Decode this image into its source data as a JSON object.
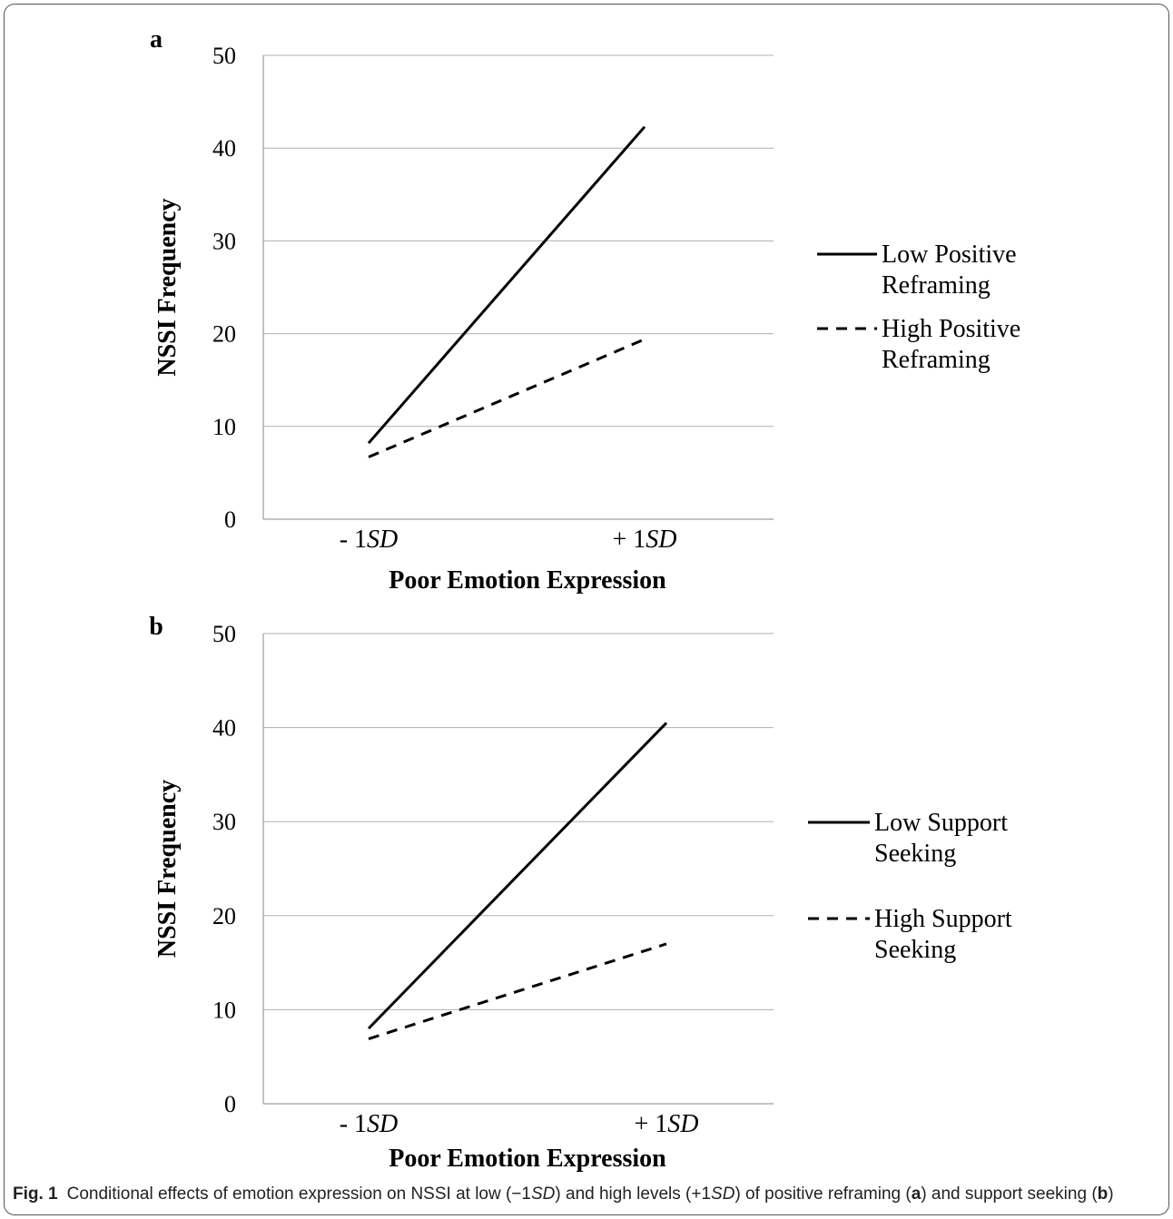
{
  "caption": {
    "label": "Fig. 1",
    "parts": [
      {
        "t": "Conditional effects of emotion expression on NSSI at low (−1",
        "s": ""
      },
      {
        "t": "SD",
        "s": "i"
      },
      {
        "t": ") and high levels (+1",
        "s": ""
      },
      {
        "t": "SD",
        "s": "i"
      },
      {
        "t": ") of positive reframing (",
        "s": ""
      },
      {
        "t": "a",
        "s": "b"
      },
      {
        "t": ") and support seeking (",
        "s": ""
      },
      {
        "t": "b",
        "s": "b"
      },
      {
        "t": ")",
        "s": ""
      }
    ]
  },
  "chart_data": [
    {
      "panel_label": "a",
      "type": "line",
      "ylabel": "NSSI Frequency",
      "xlabel": "Poor Emotion Expression",
      "ylim": [
        0,
        50
      ],
      "yticks": [
        0,
        10,
        20,
        30,
        40,
        50
      ],
      "grid": true,
      "legend_position": "right",
      "categories": [
        {
          "prefix": "- 1",
          "italic": "SD"
        },
        {
          "prefix": "+ 1",
          "italic": "SD"
        }
      ],
      "series": [
        {
          "name_lines": [
            "Low Positive",
            "Reframing"
          ],
          "style": "solid",
          "color": "#000000",
          "values": [
            8.2,
            42.3
          ]
        },
        {
          "name_lines": [
            "High Positive",
            "Reframing"
          ],
          "style": "dashed",
          "color": "#000000",
          "values": [
            6.7,
            19.4
          ]
        }
      ]
    },
    {
      "panel_label": "b",
      "type": "line",
      "ylabel": "NSSI Frequency",
      "xlabel": "Poor Emotion Expression",
      "ylim": [
        0,
        50
      ],
      "yticks": [
        0,
        10,
        20,
        30,
        40,
        50
      ],
      "grid": true,
      "legend_position": "right",
      "categories": [
        {
          "prefix": "- 1",
          "italic": "SD"
        },
        {
          "prefix": "+ 1",
          "italic": "SD"
        }
      ],
      "series": [
        {
          "name_lines": [
            "Low Support",
            "Seeking"
          ],
          "style": "solid",
          "color": "#000000",
          "values": [
            8.0,
            40.5
          ]
        },
        {
          "name_lines": [
            "High Support",
            "Seeking"
          ],
          "style": "dashed",
          "color": "#000000",
          "values": [
            6.9,
            17.0
          ]
        }
      ]
    }
  ]
}
